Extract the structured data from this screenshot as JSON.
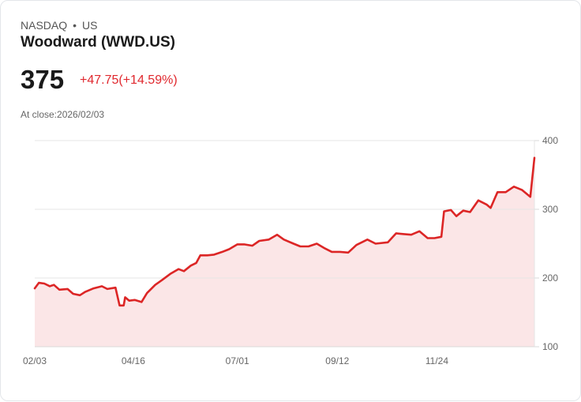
{
  "header": {
    "exchange": "NASDAQ",
    "separator": "•",
    "region": "US",
    "title": "Woodward (WWD.US)",
    "price": "375",
    "change": "+47.75(+14.59%)",
    "at_close": "At close:2026/02/03"
  },
  "colors": {
    "line": "#dc2626",
    "fill": "#fbe6e7",
    "grid": "#e5e5e5",
    "change": "#e0282e"
  },
  "chart_data": {
    "type": "area",
    "title": "Woodward (WWD.US)",
    "xlabel": "",
    "ylabel": "",
    "ylim": [
      100,
      400
    ],
    "xlim_days": [
      0,
      365
    ],
    "y_ticks": [
      100,
      200,
      300,
      400
    ],
    "x_ticks": [
      {
        "label": "02/03",
        "day": 0
      },
      {
        "label": "04/16",
        "day": 72
      },
      {
        "label": "07/01",
        "day": 148
      },
      {
        "label": "09/12",
        "day": 221
      },
      {
        "label": "11/24",
        "day": 294
      }
    ],
    "grid": true,
    "y_axis_side": "right",
    "series": [
      {
        "name": "WWD.US",
        "points": [
          [
            0,
            185
          ],
          [
            3,
            193
          ],
          [
            7,
            192
          ],
          [
            11,
            188
          ],
          [
            14,
            190
          ],
          [
            18,
            183
          ],
          [
            24,
            184
          ],
          [
            28,
            177
          ],
          [
            33,
            175
          ],
          [
            37,
            180
          ],
          [
            43,
            185
          ],
          [
            49,
            188
          ],
          [
            53,
            184
          ],
          [
            59,
            186
          ],
          [
            62,
            160
          ],
          [
            65,
            160
          ],
          [
            66,
            172
          ],
          [
            69,
            167
          ],
          [
            73,
            168
          ],
          [
            78,
            165
          ],
          [
            82,
            178
          ],
          [
            88,
            190
          ],
          [
            93,
            197
          ],
          [
            99,
            206
          ],
          [
            105,
            213
          ],
          [
            109,
            210
          ],
          [
            114,
            218
          ],
          [
            118,
            222
          ],
          [
            121,
            233
          ],
          [
            126,
            233
          ],
          [
            131,
            234
          ],
          [
            137,
            238
          ],
          [
            142,
            242
          ],
          [
            148,
            249
          ],
          [
            153,
            249
          ],
          [
            159,
            247
          ],
          [
            164,
            254
          ],
          [
            171,
            256
          ],
          [
            177,
            263
          ],
          [
            182,
            256
          ],
          [
            189,
            250
          ],
          [
            194,
            246
          ],
          [
            200,
            246
          ],
          [
            206,
            250
          ],
          [
            212,
            243
          ],
          [
            217,
            238
          ],
          [
            223,
            238
          ],
          [
            229,
            237
          ],
          [
            235,
            248
          ],
          [
            243,
            256
          ],
          [
            249,
            250
          ],
          [
            258,
            252
          ],
          [
            264,
            265
          ],
          [
            269,
            264
          ],
          [
            275,
            263
          ],
          [
            281,
            268
          ],
          [
            287,
            258
          ],
          [
            292,
            258
          ],
          [
            297,
            260
          ],
          [
            299,
            297
          ],
          [
            304,
            299
          ],
          [
            308,
            290
          ],
          [
            313,
            298
          ],
          [
            318,
            296
          ],
          [
            324,
            313
          ],
          [
            330,
            307
          ],
          [
            333,
            302
          ],
          [
            338,
            325
          ],
          [
            344,
            325
          ],
          [
            350,
            333
          ],
          [
            356,
            328
          ],
          [
            362,
            318
          ],
          [
            365,
            375
          ]
        ]
      }
    ]
  }
}
